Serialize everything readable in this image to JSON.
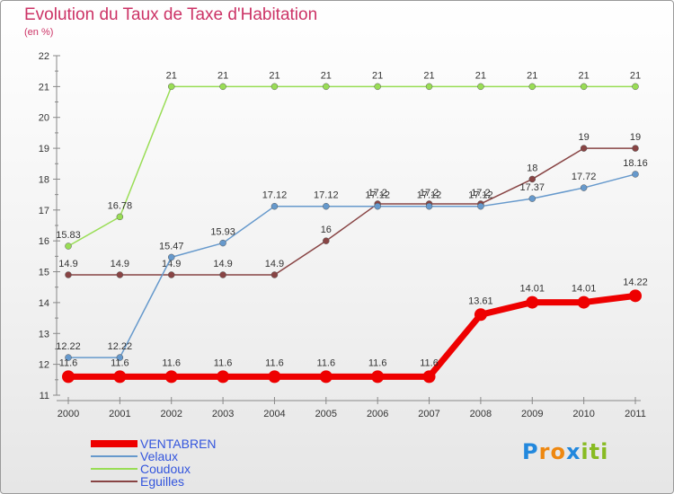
{
  "chart_data": {
    "type": "line",
    "title": "Evolution du Taux de Taxe d'Habitation",
    "subtitle": "(en %)",
    "x": [
      "2000",
      "2001",
      "2002",
      "2003",
      "2004",
      "2005",
      "2006",
      "2007",
      "2008",
      "2009",
      "2010",
      "2011"
    ],
    "ylim": [
      11,
      22
    ],
    "yticks": [
      "11",
      "12",
      "13",
      "14",
      "15",
      "16",
      "17",
      "18",
      "19",
      "20",
      "21",
      "22"
    ],
    "grid": false,
    "legend_position": "bottom-left",
    "series": [
      {
        "name": "Coudoux",
        "color": "#99dd55",
        "values": [
          15.83,
          16.78,
          21,
          21,
          21,
          21,
          21,
          21,
          21,
          21,
          21,
          21
        ],
        "labels": [
          "15.83",
          "16.78",
          "21",
          "21",
          "21",
          "21",
          "21",
          "21",
          "21",
          "21",
          "21",
          "21"
        ]
      },
      {
        "name": "Eguilles",
        "color": "#884444",
        "values": [
          14.9,
          14.9,
          14.9,
          14.9,
          14.9,
          16,
          17.2,
          17.2,
          17.2,
          18,
          19,
          19
        ],
        "labels": [
          "14.9",
          "14.9",
          "14.9",
          "14.9",
          "14.9",
          "16",
          "17.2",
          "17.2",
          "17.2",
          "18",
          "19",
          "19"
        ]
      },
      {
        "name": "Velaux",
        "color": "#6699cc",
        "values": [
          12.22,
          12.22,
          15.47,
          15.93,
          17.12,
          17.12,
          17.12,
          17.12,
          17.12,
          17.37,
          17.72,
          18.16
        ],
        "labels": [
          "12.22",
          "12.22",
          "15.47",
          "15.93",
          "17.12",
          "17.12",
          "17.12",
          "17.12",
          "17.12",
          "17.37",
          "17.72",
          "18.16"
        ]
      },
      {
        "name": "VENTABREN",
        "color": "#ee0000",
        "values": [
          11.6,
          11.6,
          11.6,
          11.6,
          11.6,
          11.6,
          11.6,
          11.6,
          13.61,
          14.01,
          14.01,
          14.22
        ],
        "labels": [
          "11.6",
          "11.6",
          "11.6",
          "11.6",
          "11.6",
          "11.6",
          "11.6",
          "11.6",
          "13.61",
          "14.01",
          "14.01",
          "14.22"
        ]
      }
    ],
    "legend": [
      "VENTABREN",
      "Velaux",
      "Coudoux",
      "Eguilles"
    ]
  },
  "logo": {
    "letters": [
      "P",
      "r",
      "o",
      "x",
      "i",
      "t",
      "i"
    ],
    "colors": [
      "#2288dd",
      "#ee8811",
      "#ee8811",
      "#2288dd",
      "#88bb22",
      "#88bb22",
      "#88bb22"
    ]
  }
}
